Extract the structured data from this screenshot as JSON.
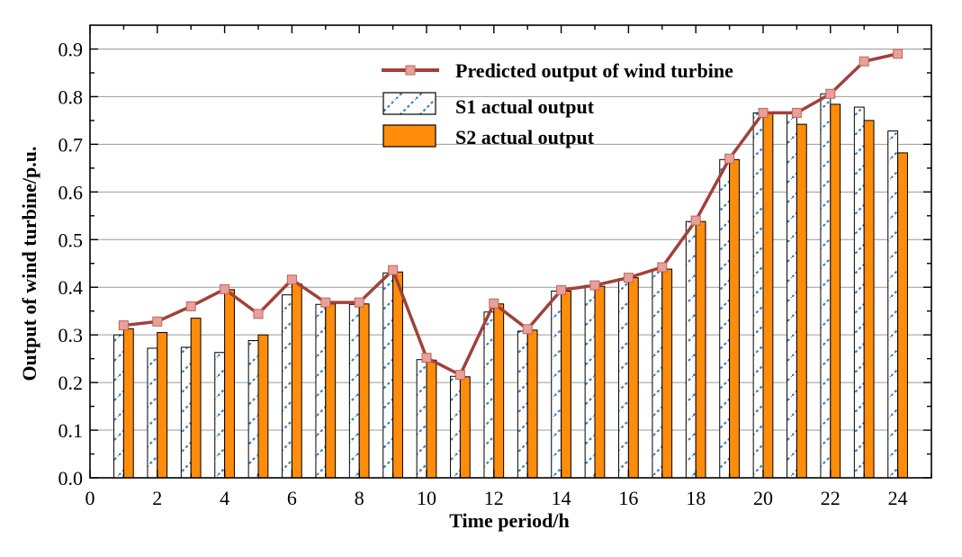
{
  "chart_data": {
    "type": "bar",
    "xlabel": "Time period/h",
    "ylabel": "Output of wind turbine/p.u.",
    "xlim": [
      0,
      25
    ],
    "ylim": [
      0,
      0.95
    ],
    "x_ticks": [
      0,
      2,
      4,
      6,
      8,
      10,
      12,
      14,
      16,
      18,
      20,
      22,
      24
    ],
    "y_ticks": [
      "0.0",
      "0.1",
      "0.2",
      "0.3",
      "0.4",
      "0.5",
      "0.6",
      "0.7",
      "0.8",
      "0.9"
    ],
    "grid": "horizontal",
    "legend_position": "top-center",
    "x": [
      1,
      2,
      3,
      4,
      5,
      6,
      7,
      8,
      9,
      10,
      11,
      12,
      13,
      14,
      15,
      16,
      17,
      18,
      19,
      20,
      21,
      22,
      23,
      24
    ],
    "series": [
      {
        "name": "Predicted output of wind turbine",
        "kind": "line",
        "color": "#a0413a",
        "marker_color": "#e8a09a",
        "values": [
          0.32,
          0.328,
          0.36,
          0.396,
          0.344,
          0.416,
          0.368,
          0.368,
          0.436,
          0.252,
          0.216,
          0.366,
          0.312,
          0.394,
          0.404,
          0.42,
          0.442,
          0.54,
          0.67,
          0.766,
          0.766,
          0.806,
          0.874,
          0.89
        ]
      },
      {
        "name": "S1 actual output",
        "kind": "bar",
        "color": "#ffffff",
        "pattern_color": "#3a7fc4",
        "values": [
          0.3,
          0.272,
          0.274,
          0.263,
          0.288,
          0.384,
          0.364,
          0.364,
          0.43,
          0.248,
          0.213,
          0.348,
          0.308,
          0.392,
          0.404,
          0.418,
          0.438,
          0.538,
          0.668,
          0.766,
          0.766,
          0.806,
          0.778,
          0.728
        ]
      },
      {
        "name": "S2 actual output",
        "kind": "bar",
        "color": "#ff8c0a",
        "values": [
          0.313,
          0.305,
          0.335,
          0.395,
          0.3,
          0.407,
          0.365,
          0.365,
          0.432,
          0.247,
          0.212,
          0.365,
          0.31,
          0.392,
          0.402,
          0.42,
          0.438,
          0.538,
          0.668,
          0.765,
          0.742,
          0.784,
          0.75,
          0.682
        ]
      }
    ]
  }
}
